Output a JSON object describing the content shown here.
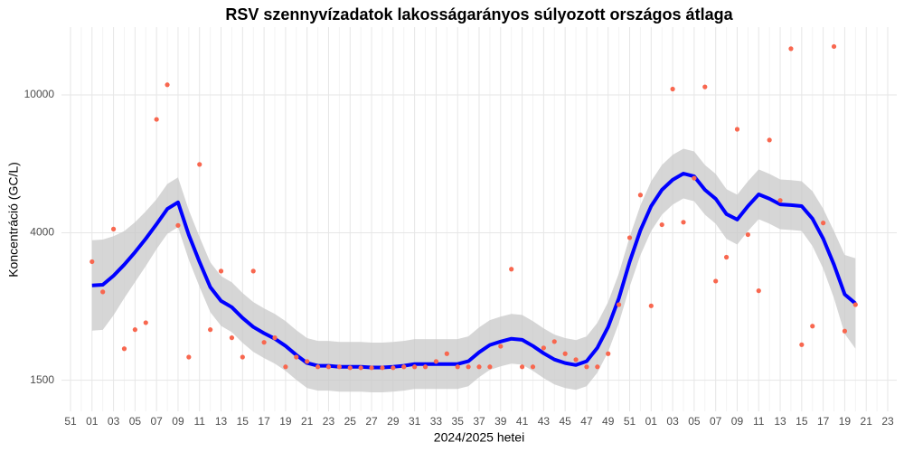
{
  "chart_data": {
    "type": "scatter_smooth",
    "title": "RSV szennyvízadatok lakosságarányos súlyozott országos átlaga",
    "x_label": "2024/2025 hetei",
    "y_label": "Koncentráció (GC/L)",
    "log_y": true,
    "grid": true,
    "ylim": [
      1220,
      15700
    ],
    "yticks": [
      1500,
      4000,
      10000
    ],
    "categories": [
      "51",
      null,
      "01",
      null,
      "03",
      null,
      "05",
      null,
      "07",
      null,
      "09",
      null,
      "11",
      null,
      "13",
      null,
      "15",
      null,
      "17",
      null,
      "19",
      null,
      "21",
      null,
      "23",
      null,
      "25",
      null,
      "27",
      null,
      "29",
      null,
      "31",
      null,
      "33",
      null,
      "35",
      null,
      "37",
      null,
      "39",
      null,
      "41",
      null,
      "43",
      null,
      "45",
      null,
      "47",
      null,
      "49",
      null,
      "51",
      null,
      "01",
      null,
      "03",
      null,
      "05",
      null,
      "07",
      null,
      "09",
      null,
      "11",
      null,
      "13",
      null,
      "15",
      null,
      "17",
      null,
      "19",
      null,
      "21",
      null,
      "23"
    ],
    "points": {
      "color": "#f8674f",
      "values": [
        null,
        null,
        3300,
        2700,
        4100,
        1850,
        2100,
        2200,
        8500,
        10700,
        4200,
        1750,
        6300,
        2100,
        3100,
        1990,
        1750,
        3100,
        1930,
        1990,
        1640,
        1750,
        1700,
        1640,
        1640,
        1640,
        1630,
        1630,
        1630,
        1630,
        1630,
        1640,
        1640,
        1640,
        1700,
        1790,
        1640,
        1640,
        1640,
        1640,
        1880,
        3140,
        1640,
        1640,
        1860,
        1940,
        1790,
        1720,
        1640,
        1640,
        1790,
        2480,
        3870,
        5140,
        2460,
        4220,
        10400,
        4290,
        5750,
        10550,
        2900,
        3400,
        7960,
        3950,
        2720,
        7410,
        4960,
        13600,
        1900,
        2150,
        4270,
        13800,
        2080,
        2480,
        null,
        null,
        null
      ]
    },
    "smooth": {
      "color": "#0000ff",
      "band_color": "#c8c8c8",
      "values": [
        null,
        null,
        2818,
        2831,
        3006,
        3236,
        3516,
        3846,
        4236,
        4688,
        4898,
        3945,
        3296,
        2786,
        2541,
        2438,
        2270,
        2138,
        2051,
        1977,
        1884,
        1774,
        1682,
        1652,
        1652,
        1641,
        1641,
        1641,
        1633,
        1633,
        1641,
        1652,
        1671,
        1671,
        1671,
        1671,
        1671,
        1702,
        1807,
        1897,
        1941,
        1977,
        1963,
        1884,
        1795,
        1722,
        1682,
        1660,
        1702,
        1862,
        2138,
        2588,
        3296,
        4064,
        4775,
        5321,
        5689,
        5929,
        5821,
        5321,
        5012,
        4529,
        4365,
        4775,
        5164,
        5012,
        4831,
        4808,
        4775,
        4395,
        3846,
        3236,
        2655,
        2500,
        null,
        null,
        null
      ],
      "lower": [
        null,
        null,
        2087,
        2097,
        2312,
        2589,
        2882,
        3205,
        3590,
        3973,
        4151,
        3343,
        2793,
        2361,
        2153,
        2066,
        1924,
        1812,
        1738,
        1675,
        1597,
        1503,
        1425,
        1400,
        1400,
        1391,
        1391,
        1391,
        1384,
        1384,
        1391,
        1400,
        1416,
        1416,
        1416,
        1416,
        1416,
        1442,
        1531,
        1608,
        1645,
        1675,
        1664,
        1597,
        1521,
        1459,
        1425,
        1407,
        1442,
        1578,
        1812,
        2193,
        2793,
        3444,
        4047,
        4509,
        4821,
        5025,
        4933,
        4509,
        4247,
        3838,
        3699,
        4047,
        4376,
        4247,
        4094,
        4075,
        4047,
        3663,
        3152,
        2589,
        2042,
        1852,
        null,
        null,
        null
      ],
      "upper": [
        null,
        null,
        3804,
        3822,
        3908,
        4045,
        4290,
        4615,
        4998,
        5532,
        5780,
        4655,
        3889,
        3287,
        2998,
        2877,
        2679,
        2523,
        2420,
        2333,
        2223,
        2093,
        1985,
        1949,
        1949,
        1936,
        1936,
        1936,
        1927,
        1927,
        1936,
        1949,
        1972,
        1972,
        1972,
        1972,
        1972,
        2008,
        2132,
        2238,
        2290,
        2333,
        2316,
        2223,
        2118,
        2032,
        1985,
        1959,
        2008,
        2197,
        2523,
        3054,
        3889,
        4796,
        5635,
        6279,
        6713,
        6996,
        6869,
        6279,
        5914,
        5344,
        5151,
        5635,
        6094,
        5914,
        5701,
        5673,
        5635,
        5274,
        4692,
        4045,
        3452,
        3375,
        null,
        null,
        null
      ]
    }
  }
}
